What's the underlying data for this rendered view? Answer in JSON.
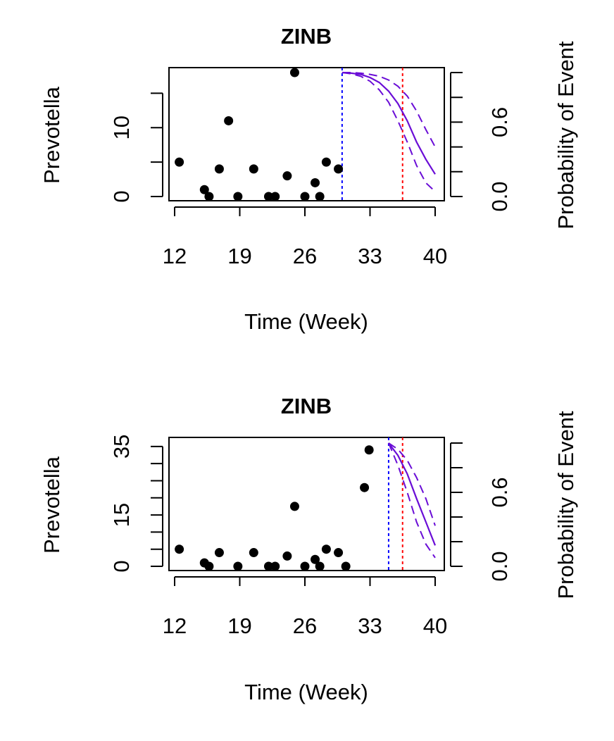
{
  "colors": {
    "points": "#000000",
    "axes": "#000000",
    "curve": "#6a0dd6",
    "blue_line": "#0000ff",
    "red_line": "#ff0000"
  },
  "chart_data": [
    {
      "type": "scatter",
      "title": "ZINB",
      "xlabel": "Time (Week)",
      "ylabel": "Prevotella",
      "y2label": "Probability of Event",
      "xlim": [
        12,
        40
      ],
      "ylim": [
        0,
        18
      ],
      "y2lim": [
        0,
        1
      ],
      "xticks": [
        12,
        19,
        26,
        33,
        40
      ],
      "yticks": [
        0,
        5,
        10,
        15
      ],
      "ytick_labels": [
        "0",
        "",
        "10",
        ""
      ],
      "y2ticks": [
        0,
        0.2,
        0.4,
        0.6,
        0.8,
        1.0
      ],
      "y2tick_labels": [
        "0.0",
        "",
        "",
        "0.6",
        "",
        ""
      ],
      "points": {
        "x": [
          12.5,
          15.2,
          15.7,
          16.8,
          17.8,
          18.8,
          20.5,
          22.1,
          22.8,
          24.1,
          24.9,
          26.0,
          27.1,
          27.6,
          28.3,
          29.6
        ],
        "y": [
          5,
          1,
          0,
          4,
          11,
          0,
          4,
          0,
          0,
          3,
          18,
          0,
          2,
          0,
          5,
          4
        ]
      },
      "vline_blue": 30,
      "vline_red": 36.5,
      "probability_curve": {
        "x": [
          30,
          31,
          32,
          33,
          34,
          35,
          36,
          37,
          38,
          39,
          40
        ],
        "estimate": [
          1.0,
          0.995,
          0.985,
          0.96,
          0.92,
          0.85,
          0.75,
          0.61,
          0.44,
          0.3,
          0.18
        ],
        "lower": [
          1.0,
          0.99,
          0.97,
          0.93,
          0.86,
          0.76,
          0.61,
          0.44,
          0.25,
          0.11,
          0.04
        ],
        "upper": [
          1.0,
          1.0,
          0.995,
          0.985,
          0.97,
          0.94,
          0.89,
          0.81,
          0.69,
          0.54,
          0.4
        ]
      }
    },
    {
      "type": "scatter",
      "title": "ZINB",
      "xlabel": "Time (Week)",
      "ylabel": "Prevotella",
      "y2label": "Probability of Event",
      "xlim": [
        12,
        40
      ],
      "ylim": [
        0,
        36
      ],
      "y2lim": [
        0,
        1
      ],
      "xticks": [
        12,
        19,
        26,
        33,
        40
      ],
      "yticks": [
        0,
        5,
        10,
        15,
        20,
        25,
        30,
        35
      ],
      "ytick_labels": [
        "0",
        "",
        "",
        "15",
        "",
        "",
        "",
        "35"
      ],
      "y2ticks": [
        0,
        0.2,
        0.4,
        0.6,
        0.8,
        1.0
      ],
      "y2tick_labels": [
        "0.0",
        "",
        "",
        "0.6",
        "",
        ""
      ],
      "points": {
        "x": [
          12.5,
          15.2,
          15.7,
          16.8,
          18.8,
          20.5,
          22.1,
          22.8,
          24.1,
          24.9,
          26.0,
          27.1,
          27.6,
          28.3,
          29.6,
          30.4,
          32.4,
          32.9
        ],
        "y": [
          5,
          1,
          0,
          4,
          0,
          4,
          0,
          0,
          3,
          17.5,
          0,
          2,
          0,
          5,
          4,
          0,
          23,
          34
        ]
      },
      "vline_blue": 35,
      "vline_red": 36.5,
      "probability_curve": {
        "x": [
          35,
          36,
          37,
          38,
          39,
          40
        ],
        "estimate": [
          1.0,
          0.9,
          0.75,
          0.55,
          0.36,
          0.17
        ],
        "lower": [
          1.0,
          0.82,
          0.6,
          0.36,
          0.18,
          0.07
        ],
        "upper": [
          1.0,
          0.95,
          0.86,
          0.72,
          0.55,
          0.33
        ]
      }
    }
  ]
}
